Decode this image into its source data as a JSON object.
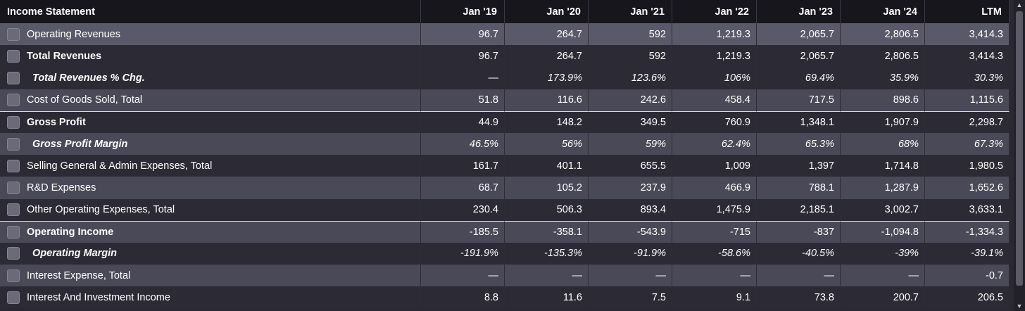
{
  "header": {
    "title": "Income Statement",
    "columns": [
      "Jan '19",
      "Jan '20",
      "Jan '21",
      "Jan '22",
      "Jan '23",
      "Jan '24",
      "LTM"
    ]
  },
  "rows": [
    {
      "label": "Operating Revenues",
      "values": [
        "96.7",
        "264.7",
        "592",
        "1,219.3",
        "2,065.7",
        "2,806.5",
        "3,414.3"
      ]
    },
    {
      "label": "Total Revenues",
      "values": [
        "96.7",
        "264.7",
        "592",
        "1,219.3",
        "2,065.7",
        "2,806.5",
        "3,414.3"
      ]
    },
    {
      "label": "Total Revenues % Chg.",
      "values": [
        "—",
        "173.9%",
        "123.6%",
        "106%",
        "69.4%",
        "35.9%",
        "30.3%"
      ]
    },
    {
      "label": "Cost of Goods Sold, Total",
      "values": [
        "51.8",
        "116.6",
        "242.6",
        "458.4",
        "717.5",
        "898.6",
        "1,115.6"
      ]
    },
    {
      "label": "Gross Profit",
      "values": [
        "44.9",
        "148.2",
        "349.5",
        "760.9",
        "1,348.1",
        "1,907.9",
        "2,298.7"
      ]
    },
    {
      "label": "Gross Profit Margin",
      "values": [
        "46.5%",
        "56%",
        "59%",
        "62.4%",
        "65.3%",
        "68%",
        "67.3%"
      ]
    },
    {
      "label": "Selling General & Admin Expenses, Total",
      "values": [
        "161.7",
        "401.1",
        "655.5",
        "1,009",
        "1,397",
        "1,714.8",
        "1,980.5"
      ]
    },
    {
      "label": "R&D Expenses",
      "values": [
        "68.7",
        "105.2",
        "237.9",
        "466.9",
        "788.1",
        "1,287.9",
        "1,652.6"
      ]
    },
    {
      "label": "Other Operating Expenses, Total",
      "values": [
        "230.4",
        "506.3",
        "893.4",
        "1,475.9",
        "2,185.1",
        "3,002.7",
        "3,633.1"
      ]
    },
    {
      "label": "Operating Income",
      "values": [
        "-185.5",
        "-358.1",
        "-543.9",
        "-715",
        "-837",
        "-1,094.8",
        "-1,334.3"
      ]
    },
    {
      "label": "Operating Margin",
      "values": [
        "-191.9%",
        "-135.3%",
        "-91.9%",
        "-58.6%",
        "-40.5%",
        "-39%",
        "-39.1%"
      ]
    },
    {
      "label": "Interest Expense, Total",
      "values": [
        "—",
        "—",
        "—",
        "—",
        "—",
        "—",
        "-0.7"
      ]
    },
    {
      "label": "Interest And Investment Income",
      "values": [
        "8.8",
        "11.6",
        "7.5",
        "9.1",
        "73.8",
        "200.7",
        "206.5"
      ]
    }
  ],
  "scrollbar": {
    "up_icon": "triangle-up-icon",
    "down_icon": "triangle-down-icon"
  }
}
